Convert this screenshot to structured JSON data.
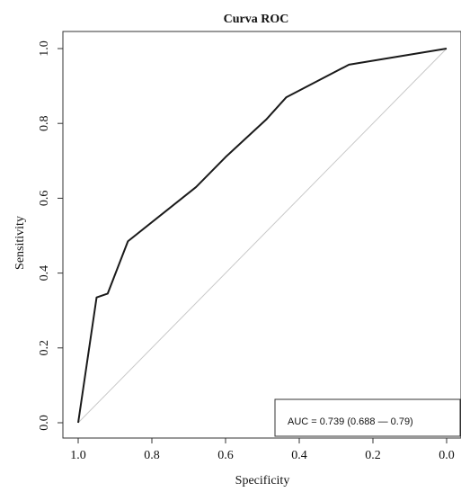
{
  "chart_data": {
    "type": "line",
    "title": "Curva ROC",
    "xlabel": "Specificity",
    "ylabel": "Sensitivity",
    "x_reversed": true,
    "xlim": [
      1.0,
      0.0
    ],
    "ylim": [
      0.0,
      1.0
    ],
    "x_ticks": [
      "1.0",
      "0.8",
      "0.6",
      "0.4",
      "0.2",
      "0.0"
    ],
    "y_ticks": [
      "0.0",
      "0.2",
      "0.4",
      "0.6",
      "0.8",
      "1.0"
    ],
    "grid": false,
    "legend": {
      "placement": "bottom-right",
      "text": "AUC = 0.739 (0.688 — 0.79)"
    },
    "series": [
      {
        "x": [
          1.0,
          0.95,
          0.935,
          0.92,
          0.865,
          0.68,
          0.6,
          0.49,
          0.435,
          0.265,
          0.0
        ],
        "y": [
          0.0,
          0.335,
          0.34,
          0.345,
          0.485,
          0.63,
          0.71,
          0.81,
          0.87,
          0.957,
          1.0
        ]
      }
    ],
    "reference_line": {
      "x": [
        1.0,
        0.0
      ],
      "y": [
        0.0,
        1.0
      ]
    },
    "colors": {
      "curve": "#1a1a1a",
      "reference": "#c8c8c8",
      "axes": "#333333",
      "background": "#ffffff"
    }
  }
}
